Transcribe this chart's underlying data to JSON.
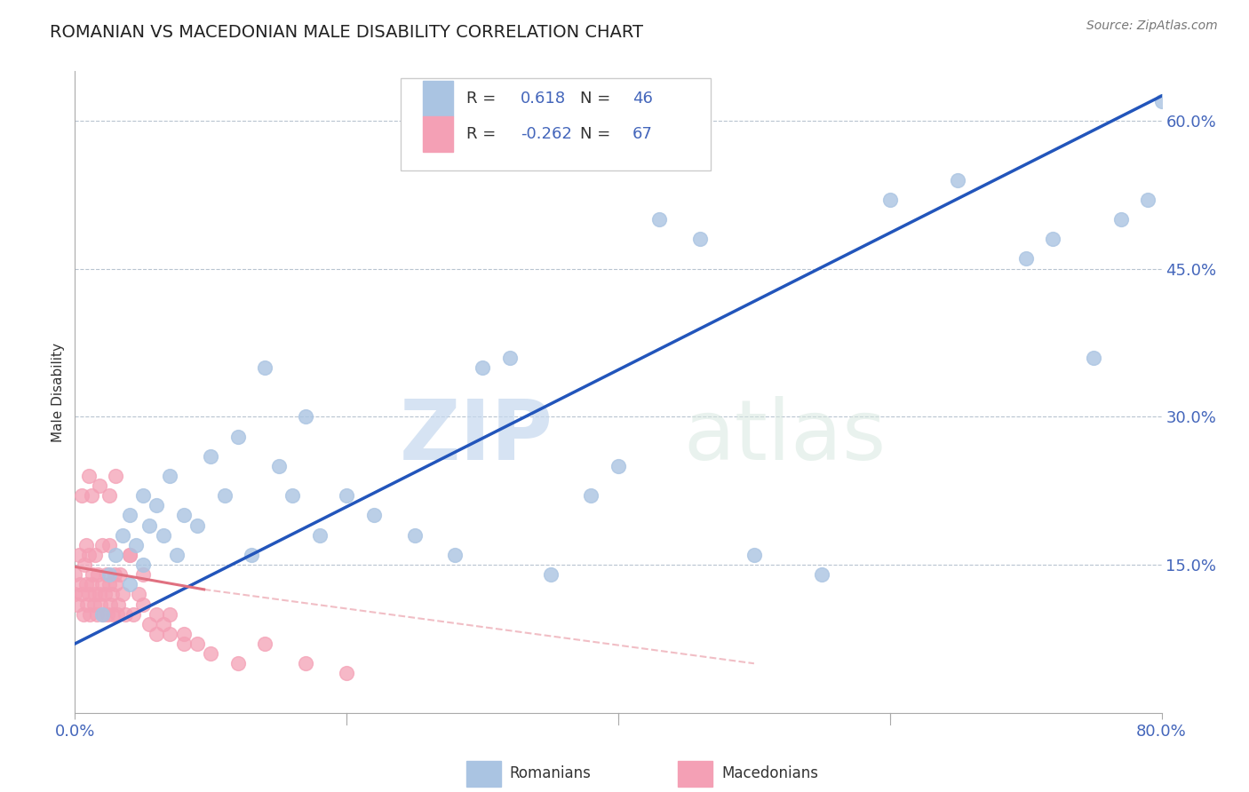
{
  "title": "ROMANIAN VS MACEDONIAN MALE DISABILITY CORRELATION CHART",
  "source": "Source: ZipAtlas.com",
  "ylabel_label": "Male Disability",
  "xlim": [
    0.0,
    0.8
  ],
  "ylim": [
    0.0,
    0.65
  ],
  "romanians_R": 0.618,
  "romanians_N": 46,
  "macedonians_R": -0.262,
  "macedonians_N": 67,
  "romanian_color": "#aac4e2",
  "macedonian_color": "#f4a0b5",
  "romanian_line_color": "#2255bb",
  "macedonian_line_color": "#e07080",
  "watermark_zip": "ZIP",
  "watermark_atlas": "atlas",
  "romanian_x": [
    0.02,
    0.025,
    0.03,
    0.035,
    0.04,
    0.04,
    0.045,
    0.05,
    0.05,
    0.055,
    0.06,
    0.065,
    0.07,
    0.075,
    0.08,
    0.09,
    0.1,
    0.11,
    0.12,
    0.13,
    0.14,
    0.15,
    0.16,
    0.17,
    0.18,
    0.2,
    0.22,
    0.25,
    0.28,
    0.3,
    0.32,
    0.35,
    0.38,
    0.4,
    0.43,
    0.46,
    0.5,
    0.55,
    0.6,
    0.65,
    0.7,
    0.72,
    0.75,
    0.77,
    0.79,
    0.8
  ],
  "romanian_y": [
    0.1,
    0.14,
    0.16,
    0.18,
    0.13,
    0.2,
    0.17,
    0.15,
    0.22,
    0.19,
    0.21,
    0.18,
    0.24,
    0.16,
    0.2,
    0.19,
    0.26,
    0.22,
    0.28,
    0.16,
    0.35,
    0.25,
    0.22,
    0.3,
    0.18,
    0.22,
    0.2,
    0.18,
    0.16,
    0.35,
    0.36,
    0.14,
    0.22,
    0.25,
    0.5,
    0.48,
    0.16,
    0.14,
    0.52,
    0.54,
    0.46,
    0.48,
    0.36,
    0.5,
    0.52,
    0.62
  ],
  "macedonian_x": [
    0.0,
    0.0,
    0.002,
    0.003,
    0.004,
    0.005,
    0.005,
    0.006,
    0.007,
    0.008,
    0.008,
    0.009,
    0.01,
    0.01,
    0.01,
    0.011,
    0.012,
    0.012,
    0.013,
    0.014,
    0.015,
    0.015,
    0.016,
    0.017,
    0.018,
    0.018,
    0.019,
    0.02,
    0.02,
    0.021,
    0.022,
    0.023,
    0.024,
    0.025,
    0.025,
    0.026,
    0.027,
    0.028,
    0.029,
    0.03,
    0.031,
    0.032,
    0.033,
    0.035,
    0.037,
    0.04,
    0.043,
    0.047,
    0.05,
    0.055,
    0.06,
    0.065,
    0.07,
    0.08,
    0.09,
    0.1,
    0.12,
    0.14,
    0.17,
    0.2,
    0.025,
    0.03,
    0.04,
    0.05,
    0.06,
    0.07,
    0.08
  ],
  "macedonian_y": [
    0.12,
    0.14,
    0.11,
    0.16,
    0.13,
    0.12,
    0.22,
    0.1,
    0.15,
    0.13,
    0.17,
    0.11,
    0.12,
    0.16,
    0.24,
    0.1,
    0.13,
    0.22,
    0.14,
    0.11,
    0.12,
    0.16,
    0.1,
    0.14,
    0.12,
    0.23,
    0.11,
    0.13,
    0.17,
    0.1,
    0.12,
    0.14,
    0.1,
    0.13,
    0.17,
    0.11,
    0.12,
    0.1,
    0.14,
    0.13,
    0.1,
    0.11,
    0.14,
    0.12,
    0.1,
    0.16,
    0.1,
    0.12,
    0.11,
    0.09,
    0.08,
    0.09,
    0.1,
    0.08,
    0.07,
    0.06,
    0.05,
    0.07,
    0.05,
    0.04,
    0.22,
    0.24,
    0.16,
    0.14,
    0.1,
    0.08,
    0.07
  ]
}
